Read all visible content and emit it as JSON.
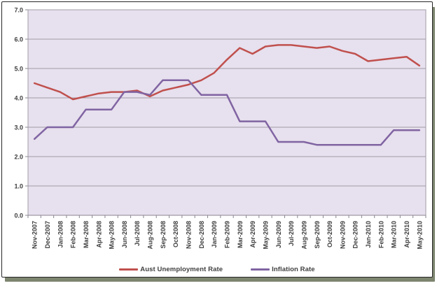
{
  "chart_data": {
    "type": "line",
    "title": "",
    "xlabel": "",
    "ylabel": "",
    "ylim": [
      0,
      7
    ],
    "ytick_step": 1,
    "ytick_labels": [
      "0.0",
      "1.0",
      "2.0",
      "3.0",
      "4.0",
      "5.0",
      "6.0",
      "7.0"
    ],
    "grid": true,
    "legend_position": "bottom",
    "plot_bg_color": "#e7e0ee",
    "gridline_color": "#a09ba6",
    "axis_line_color": "#8a8590",
    "categories": [
      "Nov-2007",
      "Dec-2007",
      "Jan-2008",
      "Feb-2008",
      "Mar-2008",
      "Apr-2008",
      "May-2008",
      "Jun-2008",
      "Jul-2008",
      "Aug-2008",
      "Sep-2008",
      "Oct-2008",
      "Nov-2008",
      "Dec-2008",
      "Jan-2009",
      "Feb-2009",
      "Mar-2009",
      "Apr-2009",
      "May-2009",
      "Jun-2009",
      "Jul-2009",
      "Aug-2009",
      "Sep-2009",
      "Oct-2009",
      "Nov-2009",
      "Dec-2009",
      "Jan-2010",
      "Feb-2010",
      "Mar-2010",
      "Apr-2010",
      "May-2010"
    ],
    "series": [
      {
        "name": "Aust Unemployment Rate",
        "color": "#c0504d",
        "values": [
          4.5,
          4.35,
          4.2,
          3.95,
          4.05,
          4.15,
          4.2,
          4.2,
          4.25,
          4.05,
          4.25,
          4.35,
          4.45,
          4.6,
          4.85,
          5.3,
          5.7,
          5.5,
          5.75,
          5.8,
          5.8,
          5.75,
          5.7,
          5.75,
          5.6,
          5.5,
          5.25,
          5.3,
          5.35,
          5.4,
          5.1
        ]
      },
      {
        "name": "Inflation Rate",
        "color": "#8064a2",
        "values": [
          2.6,
          3.0,
          3.0,
          3.0,
          3.6,
          3.6,
          3.6,
          4.2,
          4.2,
          4.1,
          4.6,
          4.6,
          4.6,
          4.1,
          4.1,
          4.1,
          3.2,
          3.2,
          3.2,
          2.5,
          2.5,
          2.5,
          2.4,
          2.4,
          2.4,
          2.4,
          2.4,
          2.4,
          2.9,
          2.9,
          2.9
        ]
      }
    ]
  }
}
